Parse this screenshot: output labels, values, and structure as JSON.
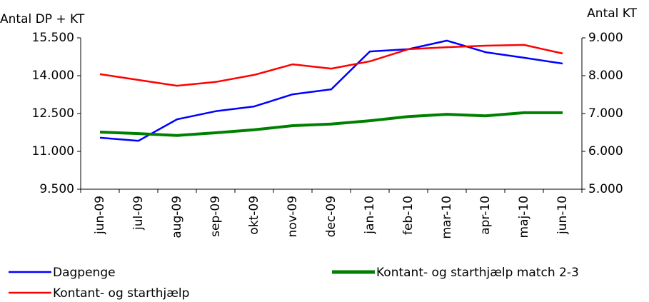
{
  "chart_data": {
    "type": "line",
    "y_label": "Antal DP + KT",
    "y2_label": "Antal KT",
    "categories": [
      "jun-09",
      "jul-09",
      "aug-09",
      "sep-09",
      "okt-09",
      "nov-09",
      "dec-09",
      "jan-10",
      "feb-10",
      "mar-10",
      "apr-10",
      "maj-10",
      "jun-10"
    ],
    "series": [
      {
        "name": "Dagpenge",
        "color": "#0000ff",
        "values": [
          11540,
          11420,
          12270,
          12590,
          12780,
          13260,
          13460,
          14960,
          15050,
          15390,
          14930,
          14710,
          14480
        ]
      },
      {
        "name": "Kontant- og starthjælp",
        "color": "#ff0000",
        "values": [
          14060,
          13830,
          13600,
          13750,
          14030,
          14450,
          14280,
          14570,
          15050,
          15130,
          15190,
          15220,
          14880
        ]
      },
      {
        "name": "Kontant- og starthjælp match 2-3",
        "color": "#008000",
        "axis": "y2",
        "values": [
          6510,
          6470,
          6420,
          6490,
          6570,
          6680,
          6720,
          6810,
          6920,
          6980,
          6940,
          7020,
          7020
        ]
      }
    ],
    "ylim": [
      9500,
      15500
    ],
    "yticks": [
      {
        "value": 9500,
        "label": "9.500"
      },
      {
        "value": 11000,
        "label": "11.000"
      },
      {
        "value": 12500,
        "label": "12.500"
      },
      {
        "value": 14000,
        "label": "14.000"
      },
      {
        "value": 15500,
        "label": "15.500"
      }
    ],
    "y2lim": [
      5000,
      9000
    ],
    "y2ticks": [
      {
        "value": 5000,
        "label": "5.000"
      },
      {
        "value": 6000,
        "label": "6.000"
      },
      {
        "value": 7000,
        "label": "7.000"
      },
      {
        "value": 8000,
        "label": "8.000"
      },
      {
        "value": 9000,
        "label": "9.000"
      }
    ]
  }
}
